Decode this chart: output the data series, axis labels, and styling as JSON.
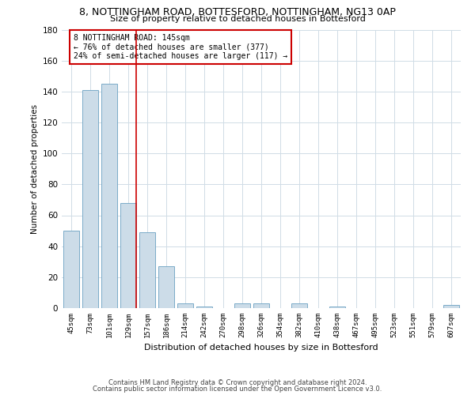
{
  "title1": "8, NOTTINGHAM ROAD, BOTTESFORD, NOTTINGHAM, NG13 0AP",
  "title2": "Size of property relative to detached houses in Bottesford",
  "xlabel": "Distribution of detached houses by size in Bottesford",
  "ylabel": "Number of detached properties",
  "bar_labels": [
    "45sqm",
    "73sqm",
    "101sqm",
    "129sqm",
    "157sqm",
    "186sqm",
    "214sqm",
    "242sqm",
    "270sqm",
    "298sqm",
    "326sqm",
    "354sqm",
    "382sqm",
    "410sqm",
    "438sqm",
    "467sqm",
    "495sqm",
    "523sqm",
    "551sqm",
    "579sqm",
    "607sqm"
  ],
  "bar_values": [
    50,
    141,
    145,
    68,
    49,
    27,
    3,
    1,
    0,
    3,
    3,
    0,
    3,
    0,
    1,
    0,
    0,
    0,
    0,
    0,
    2
  ],
  "bar_color": "#ccdce8",
  "bar_edge_color": "#7aaac8",
  "ylim": [
    0,
    180
  ],
  "yticks": [
    0,
    20,
    40,
    60,
    80,
    100,
    120,
    140,
    160,
    180
  ],
  "vline_color": "#cc0000",
  "annotation_text": "8 NOTTINGHAM ROAD: 145sqm\n← 76% of detached houses are smaller (377)\n24% of semi-detached houses are larger (117) →",
  "annotation_box_color": "#cc0000",
  "footer1": "Contains HM Land Registry data © Crown copyright and database right 2024.",
  "footer2": "Contains public sector information licensed under the Open Government Licence v3.0.",
  "background_color": "#ffffff",
  "grid_color": "#d0dce6"
}
